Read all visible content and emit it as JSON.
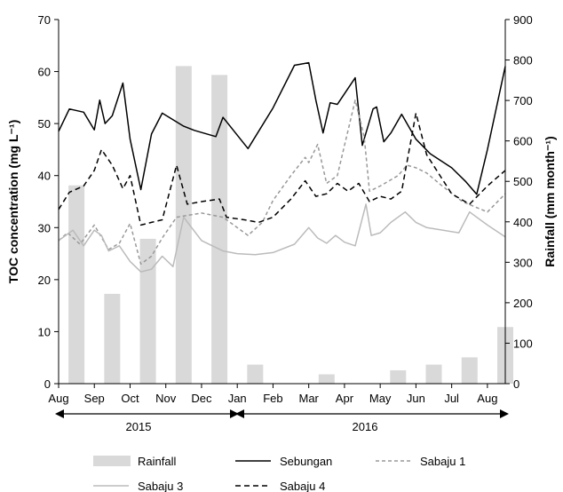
{
  "chart_data": {
    "type": "bar+line",
    "ylabel_left": "TOC concentration (mg L⁻¹)",
    "ylabel_right": "Rainfall (mm month⁻¹)",
    "ylim_left": [
      0,
      70
    ],
    "ylim_right": [
      0,
      900
    ],
    "y_ticks_left": [
      "0",
      "10",
      "20",
      "30",
      "40",
      "50",
      "60",
      "70"
    ],
    "y_ticks_right": [
      "0",
      "100",
      "200",
      "300",
      "400",
      "500",
      "600",
      "700",
      "800",
      "900"
    ],
    "x_months": [
      "Aug",
      "Sep",
      "Oct",
      "Nov",
      "Dec",
      "Jan",
      "Feb",
      "Mar",
      "Apr",
      "May",
      "Jun",
      "Jul",
      "Aug"
    ],
    "years": [
      "2015",
      "2016"
    ],
    "x_domain": [
      0,
      12.5
    ],
    "rainfall": {
      "name": "Rainfall",
      "x": [
        0.5,
        1.5,
        2.5,
        3.5,
        4.5,
        5.5,
        7.5,
        9.5,
        10.5,
        11.5,
        12.5
      ],
      "values": [
        490,
        222,
        358,
        785,
        763,
        47,
        23,
        33,
        47,
        65,
        140
      ]
    },
    "series": [
      {
        "name": "Sebungan",
        "color": "#000000",
        "dash": "solid",
        "x": [
          0,
          0.3,
          0.7,
          1.0,
          1.15,
          1.3,
          1.5,
          1.8,
          2.0,
          2.3,
          2.6,
          2.9,
          3.5,
          3.8,
          4.4,
          4.6,
          5.3,
          6.0,
          6.6,
          7.0,
          7.2,
          7.4,
          7.6,
          7.8,
          8.3,
          8.5,
          8.8,
          8.9,
          9.1,
          9.3,
          9.6,
          10.0,
          10.4,
          11.0,
          11.4,
          11.7,
          12.0,
          12.5
        ],
        "values": [
          48.5,
          52.8,
          52.2,
          48.8,
          54.5,
          50.0,
          51.5,
          57.8,
          47.0,
          37.3,
          48.0,
          52.0,
          49.5,
          48.7,
          47.5,
          51.2,
          45.2,
          53.0,
          61.2,
          61.7,
          54.5,
          48.2,
          54.0,
          53.7,
          58.8,
          45.8,
          52.8,
          53.2,
          46.5,
          48.2,
          51.8,
          47.0,
          44.2,
          41.5,
          38.8,
          36.4,
          45.0,
          61.0
        ]
      },
      {
        "name": "Sabaju 1",
        "color": "#999999",
        "dash": "4,3",
        "x": [
          0,
          0.25,
          0.6,
          1.0,
          1.4,
          1.7,
          2.0,
          2.3,
          2.6,
          2.9,
          3.3,
          4.0,
          4.6,
          5.3,
          5.7,
          6.0,
          6.5,
          6.9,
          7.0,
          7.25,
          7.5,
          7.8,
          8.3,
          8.55,
          8.7,
          9.0,
          9.5,
          9.75,
          10.0,
          10.3,
          10.7,
          11.3,
          12.0,
          12.5
        ],
        "values": [
          27.5,
          29.0,
          26.8,
          30.5,
          25.8,
          27.0,
          30.8,
          23.0,
          24.5,
          28.0,
          32.0,
          32.8,
          32.0,
          28.5,
          31.0,
          35.2,
          40.0,
          43.5,
          42.5,
          46.0,
          38.5,
          40.0,
          54.5,
          47.5,
          37.0,
          38.0,
          40.0,
          42.0,
          41.5,
          40.5,
          38.2,
          35.0,
          33.0,
          36.5
        ]
      },
      {
        "name": "Sabaju 3",
        "color": "#bbbbbb",
        "dash": "solid",
        "x": [
          0,
          0.4,
          0.7,
          1.0,
          1.2,
          1.4,
          1.7,
          2.0,
          2.3,
          2.6,
          2.9,
          3.2,
          3.5,
          4.0,
          4.6,
          5.0,
          5.5,
          6.0,
          6.6,
          7.0,
          7.25,
          7.5,
          7.75,
          8.0,
          8.3,
          8.6,
          8.75,
          9.0,
          9.3,
          9.7,
          10.0,
          10.3,
          11.2,
          11.5,
          12.0,
          12.5
        ],
        "values": [
          27.5,
          29.5,
          26.5,
          29.5,
          28.5,
          25.5,
          26.5,
          23.5,
          21.5,
          22.0,
          24.5,
          22.5,
          32.0,
          27.5,
          25.5,
          25.0,
          24.8,
          25.2,
          26.8,
          30.0,
          28.0,
          27.0,
          28.5,
          27.2,
          26.5,
          34.5,
          28.5,
          29.0,
          31.0,
          33.0,
          31.0,
          30.0,
          29.0,
          33.0,
          30.5,
          28.2
        ]
      },
      {
        "name": "Sabaju 4",
        "color": "#000000",
        "dash": "6,4",
        "x": [
          0,
          0.3,
          0.7,
          1.0,
          1.2,
          1.5,
          1.8,
          2.0,
          2.3,
          2.6,
          2.9,
          3.3,
          3.6,
          4.0,
          4.5,
          4.7,
          5.2,
          5.6,
          6.0,
          6.5,
          6.9,
          7.2,
          7.5,
          7.8,
          8.1,
          8.4,
          8.7,
          9.0,
          9.3,
          9.6,
          10.0,
          10.3,
          11.0,
          11.5,
          12.0,
          12.5
        ],
        "values": [
          33.5,
          36.8,
          38.0,
          41.0,
          45.0,
          42.0,
          37.5,
          40.0,
          30.5,
          31.0,
          31.5,
          42.0,
          34.5,
          35.0,
          35.5,
          32.0,
          31.5,
          31.0,
          32.0,
          35.5,
          39.0,
          36.0,
          36.5,
          38.5,
          37.0,
          38.5,
          35.0,
          36.0,
          35.5,
          37.0,
          52.0,
          44.0,
          36.5,
          34.5,
          38.0,
          41.0
        ]
      }
    ],
    "legend": [
      "Rainfall",
      "Sebungan",
      "Sabaju 1",
      "Sabaju 3",
      "Sabaju 4"
    ],
    "legend_position": "bottom",
    "grid": false
  }
}
